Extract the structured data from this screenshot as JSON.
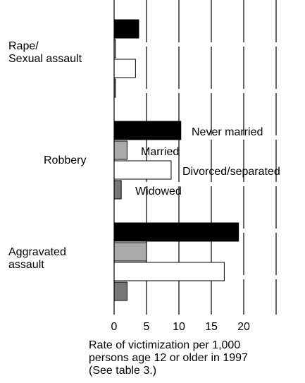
{
  "chart_data": {
    "type": "bar",
    "orientation": "horizontal",
    "categories": [
      "Rape/\nSexual assault",
      "Robbery",
      "Aggravated\nassault"
    ],
    "series": [
      {
        "name": "Never married",
        "color": "#000000",
        "values": [
          3.8,
          10.3,
          19.2
        ]
      },
      {
        "name": "Married",
        "color": "#aaaaaa",
        "values": [
          0.2,
          2.0,
          5.0
        ]
      },
      {
        "name": "Divorced/separated",
        "color": "#ffffff",
        "values": [
          3.3,
          8.8,
          17.0
        ]
      },
      {
        "name": "Widowed",
        "color": "#777777",
        "values": [
          0.2,
          1.1,
          2.0
        ]
      }
    ],
    "xlim": [
      0,
      25
    ],
    "xticks": [
      0,
      5,
      10,
      15,
      20
    ],
    "x_label": "Rate of victimization per 1,000\npersons age 12 or older in 1997\n(See table 3.)",
    "grid": true
  }
}
